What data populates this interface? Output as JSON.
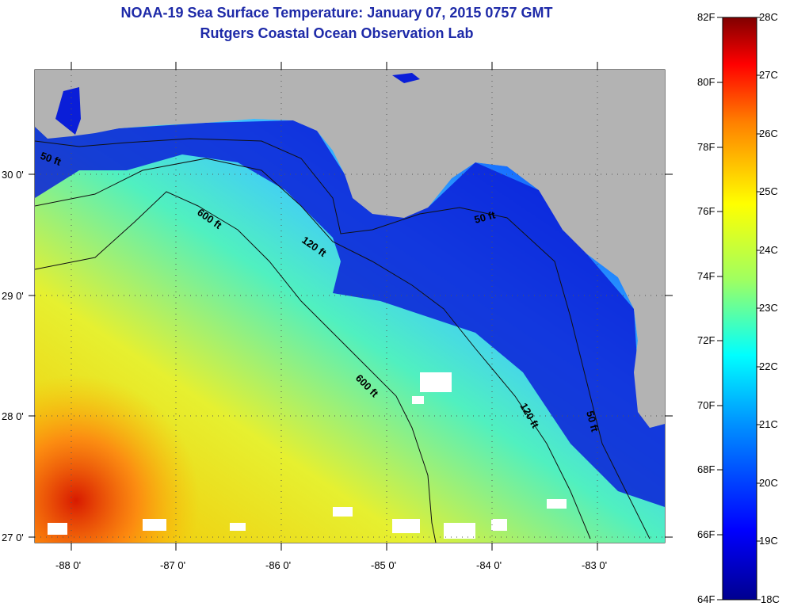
{
  "title": "NOAA-19 Sea Surface Temperature:  January 07, 2015 0757 GMT",
  "subtitle": "Rutgers Coastal Ocean Observation Lab",
  "x_ticks": [
    "-88 0'",
    "-87 0'",
    "-86 0'",
    "-85 0'",
    "-84 0'",
    "-83 0'"
  ],
  "y_ticks": [
    "30 0'",
    "29 0'",
    "28 0'",
    "27 0'"
  ],
  "contours": {
    "c50_left": "50 ft",
    "c600_a": "600 ft",
    "c120_a": "120 ft",
    "c50_right": "50 ft",
    "c600_b": "600 ft",
    "c120_b": "120 ft",
    "c50_b": "50 ft"
  },
  "colorbar": {
    "f_labels": [
      "82F",
      "80F",
      "78F",
      "76F",
      "74F",
      "72F",
      "70F",
      "68F",
      "66F",
      "64F"
    ],
    "c_labels": [
      "28C",
      "27C",
      "26C",
      "25C",
      "24C",
      "23C",
      "22C",
      "21C",
      "20C",
      "19C",
      "18C"
    ]
  },
  "colors": {
    "land": "#b3b3b3",
    "title": "#1e2aa8"
  }
}
